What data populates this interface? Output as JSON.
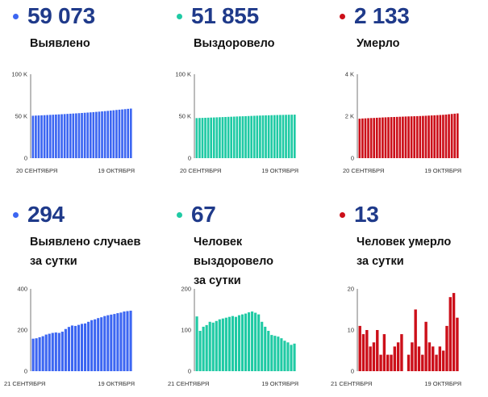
{
  "panels": [
    {
      "value": "59 073",
      "label": "Выявлено",
      "color": "#3c66f2",
      "chart_data": {
        "type": "bar",
        "ylim": [
          0,
          100000
        ],
        "yticks": [
          "0",
          "50 K",
          "100 K"
        ],
        "x_start": "20 СЕНТЯБРЯ",
        "x_end": "19 ОКТЯБРЯ",
        "values": [
          50550,
          50730,
          50890,
          51050,
          51220,
          51400,
          51590,
          51770,
          51960,
          52150,
          52340,
          52540,
          52740,
          52960,
          53170,
          53390,
          53620,
          53850,
          54090,
          54340,
          54590,
          54860,
          55140,
          55420,
          55720,
          56040,
          56360,
          56700,
          57060,
          57420,
          57760,
          58080,
          58400,
          58779,
          59073
        ]
      }
    },
    {
      "value": "51 855",
      "label": "Выздоровело",
      "color": "#1fcaa4",
      "chart_data": {
        "type": "bar",
        "ylim": [
          0,
          100000
        ],
        "yticks": [
          "0",
          "50 K",
          "100 K"
        ],
        "x_start": "20 СЕНТЯБРЯ",
        "x_end": "19 ОКТЯБРЯ",
        "values": [
          47750,
          47880,
          47980,
          48100,
          48230,
          48360,
          48490,
          48630,
          48780,
          48920,
          49060,
          49210,
          49350,
          49490,
          49640,
          49780,
          49920,
          50060,
          50200,
          50340,
          50480,
          50620,
          50760,
          50880,
          51000,
          51110,
          51210,
          51310,
          51400,
          51490,
          51570,
          51650,
          51730,
          51788,
          51855
        ]
      }
    },
    {
      "value": "2 133",
      "label": "Умерло",
      "color": "#cc0f19",
      "chart_data": {
        "type": "bar",
        "ylim": [
          0,
          4000
        ],
        "yticks": [
          "0",
          "2 K",
          "4 K"
        ],
        "x_start": "20 СЕНТЯБРЯ",
        "x_end": "19 ОКТЯБРЯ",
        "values": [
          1880,
          1891,
          1898,
          1906,
          1912,
          1917,
          1925,
          1932,
          1940,
          1946,
          1953,
          1958,
          1962,
          1967,
          1973,
          1979,
          1985,
          1990,
          1994,
          1998,
          2003,
          2008,
          2014,
          2021,
          2029,
          2036,
          2042,
          2050,
          2058,
          2066,
          2078,
          2093,
          2107,
          2120,
          2133
        ]
      }
    },
    {
      "value": "294",
      "label": "Выявлено случаев\nза сутки",
      "color": "#3c66f2",
      "chart_data": {
        "type": "bar",
        "ylim": [
          0,
          400
        ],
        "yticks": [
          "0",
          "200",
          "400"
        ],
        "x_start": "21 СЕНТЯБРЯ",
        "x_end": "19 ОКТЯБРЯ",
        "values": [
          158,
          160,
          165,
          170,
          178,
          182,
          186,
          188,
          186,
          192,
          205,
          215,
          222,
          220,
          225,
          230,
          232,
          240,
          248,
          252,
          258,
          262,
          268,
          272,
          275,
          278,
          282,
          285,
          290,
          292,
          294
        ]
      }
    },
    {
      "value": "67",
      "label": "Человек выздоровело\nза сутки",
      "color": "#1fcaa4",
      "chart_data": {
        "type": "bar",
        "ylim": [
          0,
          200
        ],
        "yticks": [
          "0",
          "100",
          "200"
        ],
        "x_start": "21 СЕНТЯБРЯ",
        "x_end": "19 ОКТЯБРЯ",
        "values": [
          133,
          98,
          108,
          112,
          120,
          118,
          122,
          126,
          128,
          130,
          132,
          134,
          132,
          136,
          138,
          140,
          143,
          145,
          142,
          138,
          120,
          108,
          98,
          88,
          86,
          84,
          80,
          74,
          70,
          64,
          67
        ]
      }
    },
    {
      "value": "13",
      "label": "Человек умерло\nза сутки",
      "color": "#cc0f19",
      "chart_data": {
        "type": "bar",
        "ylim": [
          0,
          20
        ],
        "yticks": [
          "0",
          "10",
          "20"
        ],
        "x_start": "21 СЕНТЯБРЯ",
        "x_end": "19 ОКТЯБРЯ",
        "values": [
          11,
          9,
          10,
          6,
          7,
          10,
          4,
          9,
          4,
          4,
          6,
          7,
          9,
          0,
          4,
          7,
          15,
          6,
          4,
          12,
          7,
          6,
          4,
          6,
          5,
          11,
          18,
          19,
          13
        ]
      }
    }
  ]
}
